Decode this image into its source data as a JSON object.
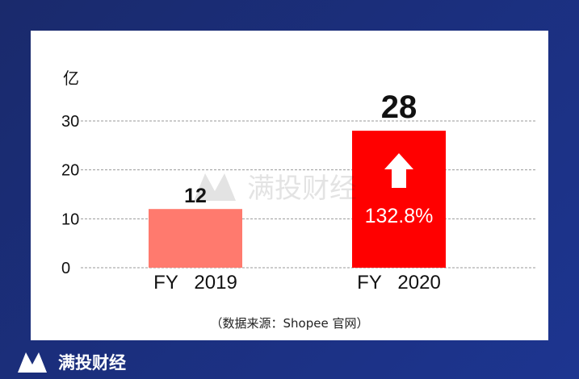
{
  "brand": {
    "name": "满投财经"
  },
  "source_note": "（数据来源：Shopee 官网）",
  "chart_data": {
    "type": "bar",
    "unit_label": "亿",
    "categories": [
      "FY   2019",
      "FY   2020"
    ],
    "values": [
      12,
      28
    ],
    "value_labels": [
      "12",
      "28"
    ],
    "bar_colors": [
      "#ff7a6e",
      "#ff0000"
    ],
    "annotation": {
      "text": "132.8%",
      "icon": "up-arrow-icon"
    },
    "yticks": [
      0,
      10,
      20,
      30
    ],
    "ylim": [
      0,
      30
    ],
    "grid": true
  }
}
